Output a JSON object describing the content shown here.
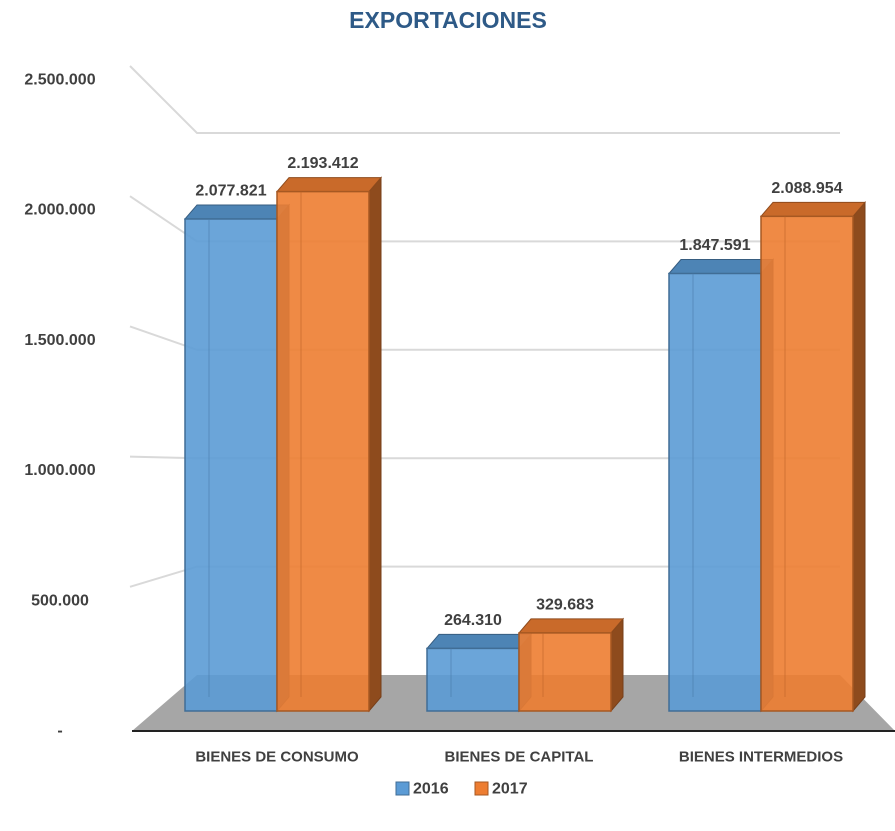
{
  "chart_data": {
    "type": "bar",
    "title": "EXPORTACIONES",
    "categories": [
      "BIENES DE CONSUMO",
      "BIENES DE CAPITAL",
      "BIENES INTERMEDIOS"
    ],
    "series": [
      {
        "name": "2016",
        "color": "#5b9bd5",
        "values": [
          2077821,
          264310,
          1847591
        ],
        "value_labels": [
          "2.077.821",
          "264.310",
          "1.847.591"
        ]
      },
      {
        "name": "2017",
        "color": "#ed7d31",
        "values": [
          2193412,
          329683,
          2088954
        ],
        "value_labels": [
          "2.193.412",
          "329.683",
          "2.088.954"
        ]
      }
    ],
    "ylim": [
      0,
      2500000
    ],
    "yticks": [
      {
        "value": 0,
        "label": "-"
      },
      {
        "value": 500000,
        "label": "500.000"
      },
      {
        "value": 1000000,
        "label": "1.000.000"
      },
      {
        "value": 1500000,
        "label": "1.500.000"
      },
      {
        "value": 2000000,
        "label": "2.000.000"
      },
      {
        "value": 2500000,
        "label": "2.500.000"
      }
    ],
    "grid": true,
    "legend": "bottom"
  }
}
